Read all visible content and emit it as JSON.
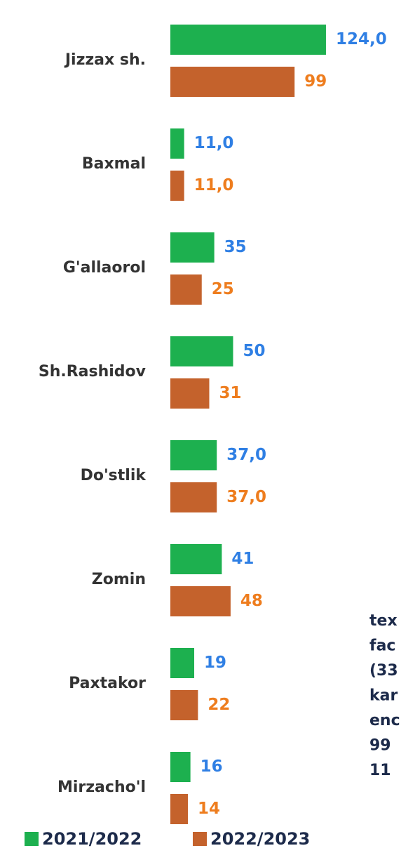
{
  "chart_data": {
    "type": "hbar",
    "categories": [
      "Jizzax sh.",
      "Baxmal",
      "G'allaorol",
      "Sh.Rashidov",
      "Do'stlik",
      "Zomin",
      "Paxtakor",
      "Mirzacho'l"
    ],
    "series": [
      {
        "name": "2021/2022",
        "color": "#1db04f",
        "label_color": "#2f7fe4",
        "values": [
          124,
          11,
          35,
          50,
          37,
          41,
          19,
          16
        ],
        "value_labels": [
          "124,0",
          "11,0",
          "35",
          "50",
          "37,0",
          "41",
          "19",
          "16"
        ]
      },
      {
        "name": "2022/2023",
        "color": "#c4622c",
        "label_color": "#ee7d1e",
        "values": [
          99,
          11,
          25,
          31,
          37,
          48,
          22,
          14
        ],
        "value_labels": [
          "99",
          "11,0",
          "25",
          "31",
          "37,0",
          "48",
          "22",
          "14"
        ]
      }
    ]
  },
  "text_fragment": [
    "tex",
    "fac",
    "(33",
    "kar",
    "enc",
    "99",
    "11"
  ]
}
